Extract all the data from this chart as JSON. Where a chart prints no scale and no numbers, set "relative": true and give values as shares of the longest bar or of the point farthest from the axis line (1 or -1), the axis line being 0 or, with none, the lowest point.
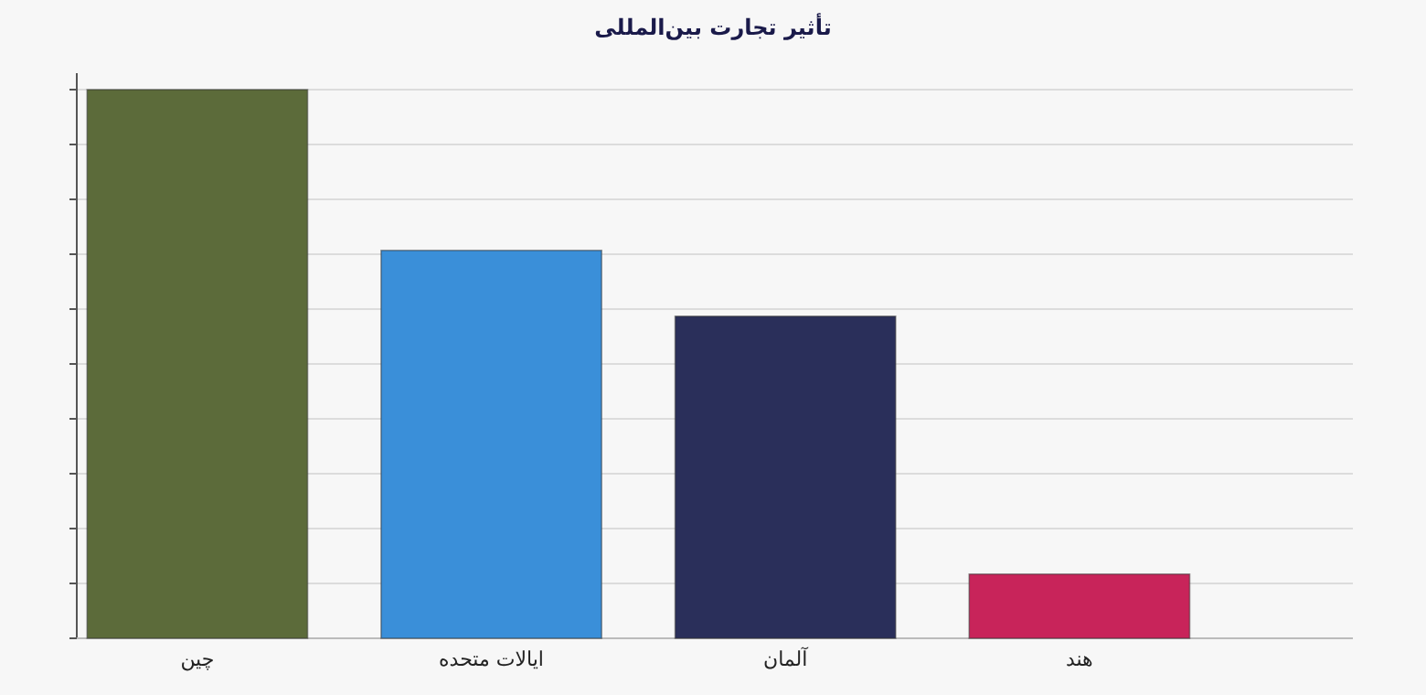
{
  "chart_data": {
    "type": "bar",
    "title": "تأثیر تجارت بین‌المللی",
    "categories": [
      "چین",
      "ایالات متحده",
      "آلمان",
      "هند"
    ],
    "values": [
      1,
      0.707,
      0.587,
      0.117
    ],
    "colors": [
      "#5c6b3a",
      "#3a8fd9",
      "#2a2f5a",
      "#c8245a"
    ],
    "relative": true,
    "grid": "y"
  }
}
